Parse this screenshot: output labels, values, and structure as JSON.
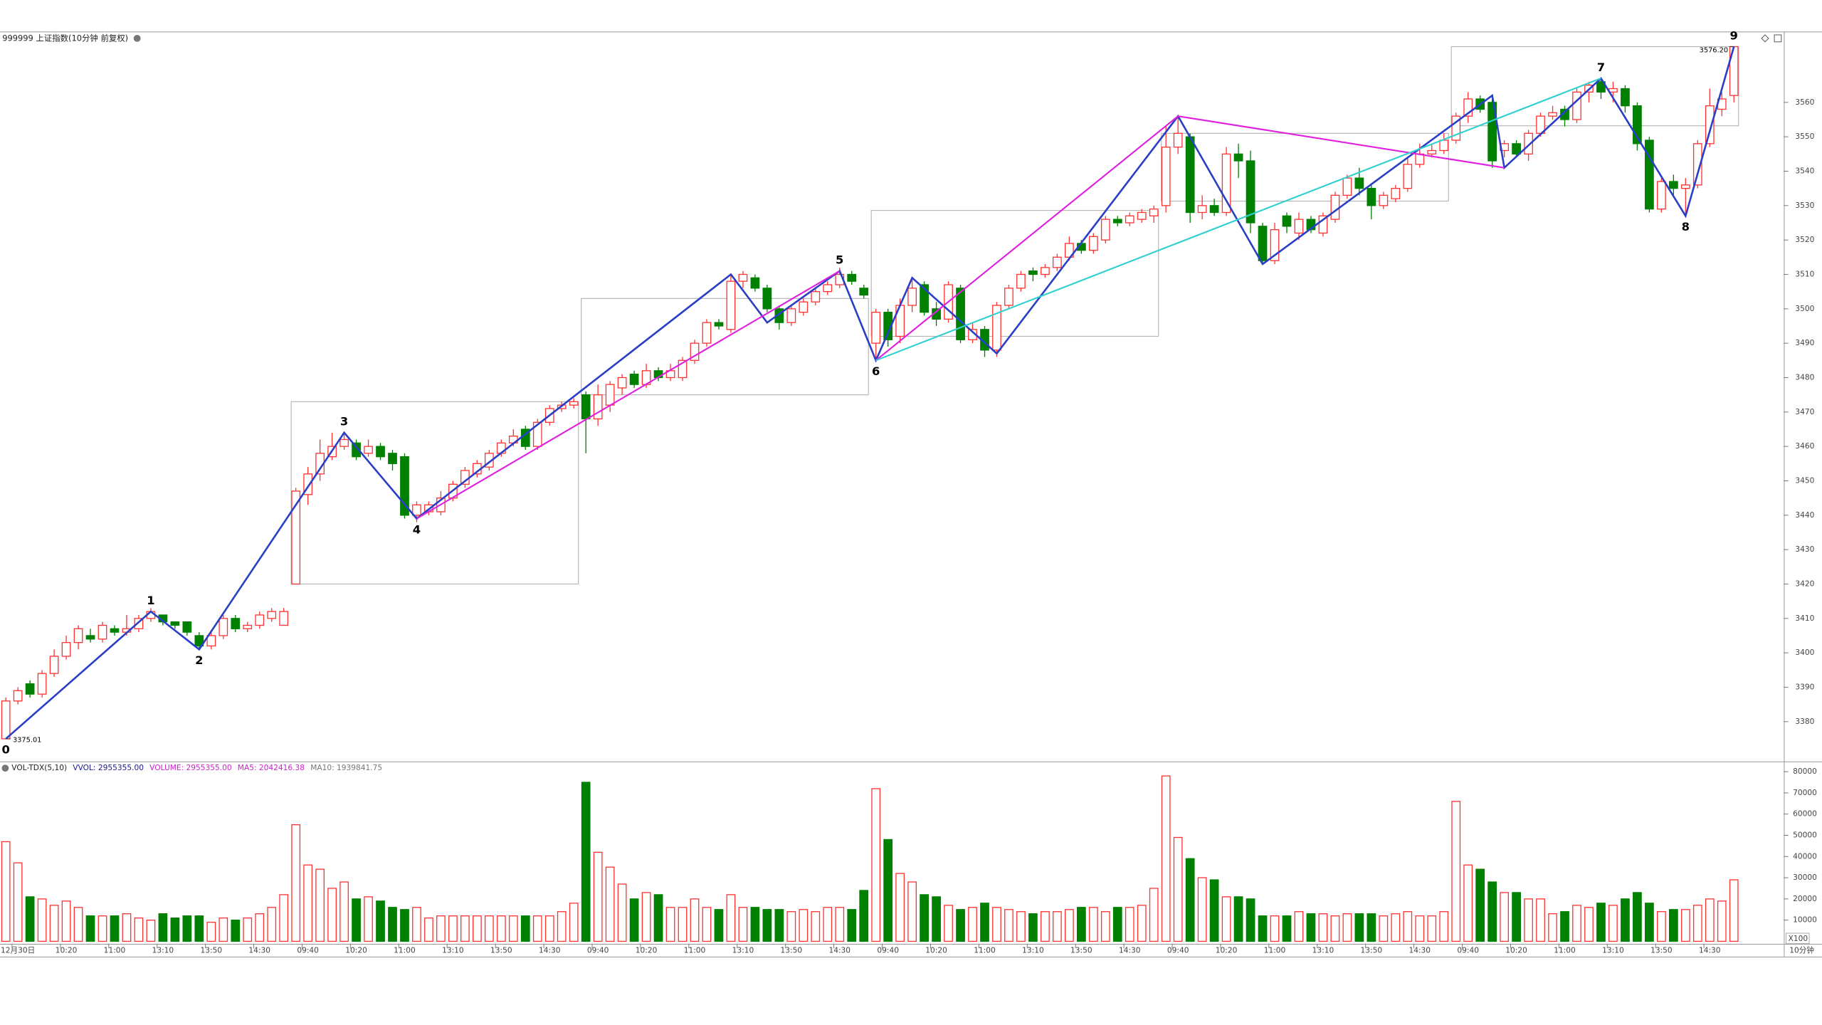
{
  "header": {
    "title": "999999 上证指数(10分钟 前复权)"
  },
  "footer": {
    "period": "10分钟"
  },
  "chart_data": [
    {
      "type": "candlestick",
      "up_color": "#ff3232",
      "down_color": "#008000",
      "categories": [
        null,
        "12月30日",
        null,
        null,
        null,
        "10:20",
        null,
        null,
        null,
        "11:00",
        null,
        null,
        null,
        "13:10",
        null,
        null,
        null,
        "13:50",
        null,
        null,
        null,
        "14:30",
        null,
        null,
        null,
        "09:40",
        null,
        null,
        null,
        "10:20",
        null,
        null,
        null,
        "11:00",
        null,
        null,
        null,
        "13:10",
        null,
        null,
        null,
        "13:50",
        null,
        null,
        null,
        "14:30",
        null,
        null,
        null,
        "09:40",
        null,
        null,
        null,
        "10:20",
        null,
        null,
        null,
        "11:00",
        null,
        null,
        null,
        "13:10",
        null,
        null,
        null,
        "13:50",
        null,
        null,
        null,
        "14:30",
        null,
        null,
        null,
        "09:40",
        null,
        null,
        null,
        "10:20",
        null,
        null,
        null,
        "11:00",
        null,
        null,
        null,
        "13:10",
        null,
        null,
        null,
        "13:50",
        null,
        null,
        null,
        "14:30",
        null,
        null,
        null,
        "09:40",
        null,
        null,
        null,
        "10:20",
        null,
        null,
        null,
        "11:00",
        null,
        null,
        null,
        "13:10",
        null,
        null,
        null,
        "13:50",
        null,
        null,
        null,
        "14:30",
        null,
        null,
        null,
        "09:40",
        null,
        null,
        null,
        "10:20",
        null,
        null,
        null,
        "11:00",
        null,
        null,
        null,
        "13:10",
        null,
        null,
        null,
        "13:50",
        null,
        null,
        null,
        "14:30",
        null,
        null
      ],
      "open": [
        3375.01,
        3386,
        3391,
        3388,
        3394,
        3399,
        3403,
        3405,
        3404,
        3407,
        3406,
        3407,
        3410,
        3411,
        3409,
        3409,
        3405,
        3402,
        3405,
        3410,
        3407,
        3408,
        3410,
        3408,
        3420,
        3446,
        3452,
        3457,
        3460,
        3461,
        3458,
        3460,
        3458,
        3457,
        3440,
        3441,
        3441,
        3445,
        3449,
        3452,
        3454,
        3458,
        3461,
        3465,
        3460,
        3467,
        3471,
        3472,
        3475,
        3468,
        3472,
        3477,
        3481,
        3478,
        3482,
        3480,
        3480,
        3485,
        3490,
        3496,
        3494,
        3508,
        3509,
        3506,
        3500,
        3496,
        3499,
        3502,
        3505,
        3507,
        3510,
        3506,
        3490,
        3499,
        3492,
        3501,
        3507,
        3500,
        3497,
        3506,
        3491,
        3494,
        3488,
        3501,
        3506,
        3511,
        3510,
        3512,
        3515,
        3519,
        3517,
        3520,
        3526,
        3525,
        3526,
        3527,
        3530,
        3547,
        3550,
        3528,
        3530,
        3528,
        3545,
        3543,
        3524,
        3514,
        3527,
        3522,
        3526,
        3522,
        3526,
        3533,
        3538,
        3535,
        3530,
        3532,
        3535,
        3542,
        3545,
        3546,
        3549,
        3556,
        3561,
        3560,
        3546,
        3548,
        3545,
        3551,
        3556,
        3558,
        3555,
        3563,
        3566,
        3563,
        3564,
        3559,
        3549,
        3529,
        3537,
        3535,
        3536,
        3548,
        3558,
        3562
      ],
      "high": [
        3387,
        3390,
        3392,
        3395,
        3401,
        3405,
        3408,
        3407,
        3409,
        3408,
        3411,
        3411,
        3413,
        3411,
        3409,
        3409,
        3406,
        3406,
        3411,
        3411,
        3409,
        3412,
        3413,
        3413,
        3448,
        3454,
        3462,
        3464,
        3464,
        3462,
        3462,
        3461,
        3459,
        3458,
        3444,
        3444,
        3447,
        3450,
        3454,
        3456,
        3459,
        3462,
        3465,
        3466,
        3468,
        3472,
        3473,
        3474,
        3476,
        3478,
        3479,
        3481,
        3482,
        3484,
        3483,
        3484,
        3486,
        3491,
        3497,
        3497,
        3510,
        3511,
        3510,
        3507,
        3501,
        3501,
        3503,
        3506,
        3508,
        3512,
        3511,
        3507,
        3500,
        3500,
        3503,
        3509,
        3508,
        3502,
        3508,
        3507,
        3496,
        3495,
        3502,
        3507,
        3511,
        3512,
        3513,
        3516,
        3521,
        3520,
        3522,
        3527,
        3527,
        3528,
        3529,
        3530,
        3553,
        3556,
        3551,
        3533,
        3532,
        3547,
        3548,
        3546,
        3525,
        3525,
        3528,
        3528,
        3527,
        3528,
        3534,
        3539,
        3541,
        3536,
        3534,
        3536,
        3544,
        3548,
        3548,
        3551,
        3557,
        3563,
        3562,
        3561,
        3549,
        3549,
        3552,
        3557,
        3559,
        3559,
        3564,
        3566,
        3567,
        3566,
        3565,
        3560,
        3550,
        3538,
        3539,
        3538,
        3549,
        3564,
        3563,
        3576.2
      ],
      "low": [
        3375.01,
        3385,
        3387,
        3387,
        3393,
        3398,
        3401,
        3403,
        3403,
        3405,
        3405,
        3406,
        3409,
        3408,
        3407,
        3405,
        3401,
        3401,
        3404,
        3406,
        3406,
        3407,
        3409,
        3408,
        3420,
        3443,
        3450,
        3456,
        3459,
        3456,
        3457,
        3456,
        3453,
        3439,
        3438,
        3440,
        3440,
        3444,
        3448,
        3451,
        3453,
        3457,
        3460,
        3459,
        3459,
        3466,
        3470,
        3471,
        3458,
        3466,
        3470,
        3475,
        3477,
        3477,
        3479,
        3479,
        3479,
        3484,
        3489,
        3494,
        3493,
        3506,
        3505,
        3499,
        3494,
        3495,
        3498,
        3501,
        3504,
        3506,
        3507,
        3503,
        3485,
        3489,
        3490,
        3499,
        3498,
        3495,
        3496,
        3490,
        3490,
        3486,
        3486,
        3500,
        3505,
        3508,
        3509,
        3511,
        3514,
        3516,
        3516,
        3519,
        3524,
        3524,
        3525,
        3525,
        3528,
        3545,
        3525,
        3526,
        3527,
        3527,
        3538,
        3522,
        3513,
        3513,
        3522,
        3520,
        3522,
        3521,
        3525,
        3532,
        3533,
        3526,
        3529,
        3531,
        3534,
        3541,
        3544,
        3545,
        3548,
        3554,
        3557,
        3541,
        3544,
        3544,
        3543,
        3550,
        3555,
        3553,
        3554,
        3560,
        3561,
        3560,
        3557,
        3546,
        3528,
        3528,
        3533,
        3527,
        3535,
        3547,
        3556,
        3560
      ],
      "close": [
        3386,
        3389,
        3388,
        3394,
        3399,
        3403,
        3407,
        3404,
        3408,
        3406,
        3407,
        3410,
        3412,
        3409,
        3408,
        3406,
        3402,
        3405,
        3410,
        3407,
        3408,
        3411,
        3412,
        3412,
        3447,
        3452,
        3458,
        3460,
        3462,
        3457,
        3460,
        3457,
        3455,
        3440,
        3443,
        3443,
        3445,
        3449,
        3453,
        3455,
        3458,
        3461,
        3463,
        3460,
        3467,
        3471,
        3472,
        3473,
        3468,
        3475,
        3478,
        3480,
        3478,
        3482,
        3480,
        3482,
        3485,
        3490,
        3496,
        3495,
        3508,
        3510,
        3506,
        3500,
        3496,
        3500,
        3502,
        3505,
        3507,
        3510,
        3508,
        3504,
        3499,
        3491,
        3501,
        3506,
        3499,
        3497,
        3507,
        3491,
        3494,
        3488,
        3501,
        3506,
        3510,
        3510,
        3512,
        3515,
        3519,
        3517,
        3521,
        3526,
        3525,
        3527,
        3528,
        3529,
        3547,
        3551,
        3528,
        3530,
        3528,
        3545,
        3543,
        3525,
        3514,
        3523,
        3524,
        3526,
        3523,
        3527,
        3533,
        3538,
        3535,
        3530,
        3533,
        3535,
        3542,
        3545,
        3546,
        3549,
        3556,
        3561,
        3558,
        3543,
        3548,
        3545,
        3551,
        3556,
        3557,
        3555,
        3563,
        3565,
        3563,
        3564,
        3559,
        3548,
        3529,
        3537,
        3535,
        3536,
        3548,
        3559,
        3561,
        3576.2
      ],
      "ylim": [
        3368.5,
        3580.3
      ],
      "yticks": [
        3380,
        3390,
        3400,
        3410,
        3420,
        3430,
        3440,
        3450,
        3460,
        3470,
        3480,
        3490,
        3500,
        3510,
        3520,
        3530,
        3540,
        3550,
        3560
      ],
      "zigzag": {
        "color": "#2b3fc6",
        "bars": [
          0,
          12,
          16,
          28,
          34,
          60,
          63,
          69,
          72,
          75,
          82,
          97,
          104,
          123,
          124,
          132,
          139,
          143
        ],
        "prices": [
          3375.01,
          3412,
          3401,
          3464,
          3439,
          3510,
          3496,
          3511,
          3485,
          3509,
          3487,
          3556,
          3513,
          3562,
          3541,
          3567,
          3527,
          3576.2
        ]
      },
      "trendlines": [
        {
          "color": "#e020e0",
          "bars": [
            34,
            69
          ],
          "prices": [
            3439,
            3511
          ]
        },
        {
          "color": "#e020e0",
          "bars": [
            72,
            97
          ],
          "prices": [
            3485,
            3556
          ]
        },
        {
          "color": "#e020e0",
          "bars": [
            97,
            124
          ],
          "prices": [
            3556,
            3541
          ]
        },
        {
          "color": "#30d0d0",
          "bars": [
            72,
            132
          ],
          "prices": [
            3485,
            3567
          ]
        }
      ],
      "boxes": [
        {
          "bars": [
            24,
            47
          ],
          "prices": [
            3420,
            3473
          ]
        },
        {
          "bars": [
            48,
            71
          ],
          "prices": [
            3475,
            3503
          ]
        },
        {
          "bars": [
            72,
            95
          ],
          "prices": [
            3492,
            3528.6
          ]
        },
        {
          "bars": [
            96,
            119
          ],
          "prices": [
            3531.3,
            3551
          ]
        },
        {
          "bars": [
            120,
            143
          ],
          "prices": [
            3553.2,
            3576.2
          ]
        }
      ],
      "waves": [
        {
          "label": "0",
          "bar": 0,
          "price": 3375.01,
          "position": "below"
        },
        {
          "label": "1",
          "bar": 12,
          "price": 3412,
          "position": "above"
        },
        {
          "label": "2",
          "bar": 16,
          "price": 3401,
          "position": "below"
        },
        {
          "label": "3",
          "bar": 28,
          "price": 3464,
          "position": "above"
        },
        {
          "label": "4",
          "bar": 34,
          "price": 3439,
          "position": "below"
        },
        {
          "label": "5",
          "bar": 69,
          "price": 3511,
          "position": "above"
        },
        {
          "label": "6",
          "bar": 72,
          "price": 3485,
          "position": "below"
        },
        {
          "label": "7",
          "bar": 132,
          "price": 3567,
          "position": "above"
        },
        {
          "label": "8",
          "bar": 139,
          "price": 3527,
          "position": "below"
        },
        {
          "label": "9",
          "bar": 143,
          "price": 3576.2,
          "position": "above"
        }
      ],
      "price_labels": [
        {
          "bar": 0,
          "value": 3375.01,
          "label": "3375.01"
        },
        {
          "bar": 143,
          "value": 3576.2,
          "label": "3576.20"
        }
      ]
    },
    {
      "type": "bar",
      "unit_label": "X100",
      "legend": [
        {
          "label": "VOL-TDX(5,10)",
          "color": "#222222"
        },
        {
          "label": "VVOL: 2955355.00",
          "color": "#1a1a8c"
        },
        {
          "label": "VOLUME: 2955355.00",
          "color": "#d020d0"
        },
        {
          "label": "MA5: 2042416.38",
          "color": "#d020d0"
        },
        {
          "label": "MA10: 1939841.75",
          "color": "#777777"
        }
      ],
      "values": [
        47000,
        37000,
        21000,
        20000,
        17000,
        19000,
        16000,
        12000,
        12000,
        12000,
        13000,
        11000,
        10000,
        13000,
        11000,
        12000,
        12000,
        9000,
        11000,
        10000,
        11000,
        13000,
        16000,
        22000,
        55000,
        36000,
        34000,
        25000,
        28000,
        20000,
        21000,
        19000,
        16000,
        15000,
        16000,
        11000,
        12000,
        12000,
        12000,
        12000,
        12000,
        12000,
        12000,
        12000,
        12000,
        12000,
        14000,
        18000,
        75000,
        42000,
        35000,
        27000,
        20000,
        23000,
        22000,
        16000,
        16000,
        20000,
        16000,
        15000,
        22000,
        16000,
        16000,
        15000,
        15000,
        14000,
        15000,
        14000,
        16000,
        16000,
        15000,
        24000,
        72000,
        48000,
        32000,
        28000,
        22000,
        21000,
        17000,
        15000,
        16000,
        18000,
        16000,
        15000,
        14000,
        13000,
        14000,
        14000,
        15000,
        16000,
        16000,
        14000,
        16000,
        16000,
        17000,
        25000,
        78000,
        49000,
        39000,
        30000,
        29000,
        21000,
        21000,
        20000,
        12000,
        12000,
        12000,
        14000,
        13000,
        13000,
        12000,
        13000,
        13000,
        13000,
        12000,
        13000,
        14000,
        12000,
        12000,
        14000,
        66000,
        36000,
        34000,
        28000,
        23000,
        23000,
        20000,
        20000,
        13000,
        14000,
        17000,
        16000,
        18000,
        17000,
        20000,
        23000,
        18000,
        14000,
        15000,
        15000,
        17000,
        20000,
        19000,
        29000
      ],
      "ylim": [
        0,
        84400
      ],
      "yticks": [
        10000,
        20000,
        30000,
        40000,
        50000,
        60000,
        70000,
        80000
      ]
    }
  ]
}
